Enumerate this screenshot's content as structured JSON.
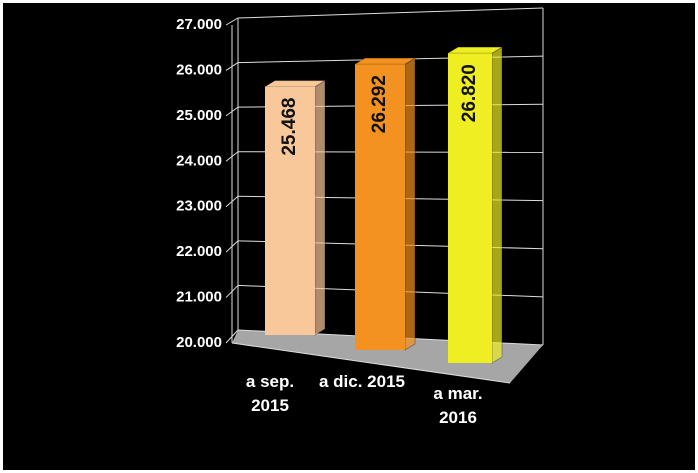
{
  "chart_data": {
    "type": "bar3d",
    "categories": [
      "a sep. 2015",
      "a dic. 2015",
      "a mar. 2016"
    ],
    "values": [
      25468,
      26292,
      26820
    ],
    "value_labels": [
      "25.468",
      "26.292",
      "26.820"
    ],
    "colors": [
      "#f9c89a",
      "#f39220",
      "#eeee22"
    ],
    "ylim": [
      20000,
      27000
    ],
    "yticks": [
      {
        "value": 20000,
        "label": "20.000"
      },
      {
        "value": 21000,
        "label": "21.000"
      },
      {
        "value": 22000,
        "label": "22.000"
      },
      {
        "value": 23000,
        "label": "23.000"
      },
      {
        "value": 24000,
        "label": "24.000"
      },
      {
        "value": 25000,
        "label": "25.000"
      },
      {
        "value": 26000,
        "label": "26.000"
      },
      {
        "value": 27000,
        "label": "27.000"
      }
    ],
    "grid": true
  }
}
